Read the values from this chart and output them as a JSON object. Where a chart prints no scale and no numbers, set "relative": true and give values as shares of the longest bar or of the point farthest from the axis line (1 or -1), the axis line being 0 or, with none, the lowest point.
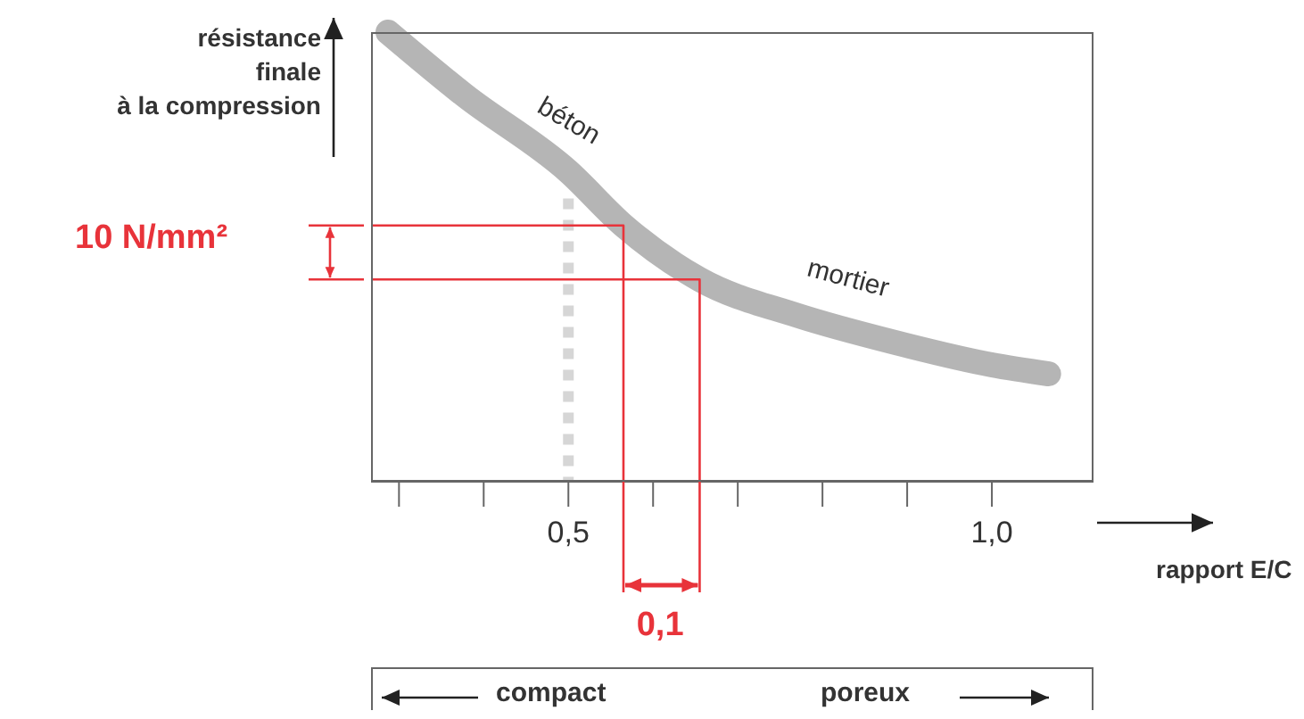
{
  "chart_data": {
    "type": "line",
    "relative": true,
    "xlabel": "rapport E/C",
    "ylabel": "résistance\nfinale\nà la compression",
    "xlim": [
      0.267,
      1.12
    ],
    "xticks": [
      {
        "value": 0.3,
        "label": null
      },
      {
        "value": 0.4,
        "label": null
      },
      {
        "value": 0.5,
        "label": "0,5"
      },
      {
        "value": 0.6,
        "label": null
      },
      {
        "value": 0.7,
        "label": null
      },
      {
        "value": 0.8,
        "label": null
      },
      {
        "value": 0.9,
        "label": null
      },
      {
        "value": 1.0,
        "label": "1,0"
      }
    ],
    "marker": "none",
    "series": [
      {
        "color": "#a8a8a8",
        "x": [
          0.287,
          0.377,
          0.5,
          0.565,
          0.655,
          0.77,
          0.885,
          1.0,
          1.067
        ],
        "values": [
          1,
          0.86,
          0.69,
          0.57,
          0.45,
          0.37,
          0.31,
          0.26,
          0.24
        ]
      },
      {
        "color": "#d6d6d6",
        "line_style": "dotted",
        "x": [
          0.5,
          0.5
        ],
        "values": [
          0.63,
          0
        ]
      },
      {
        "color": "#e8333a",
        "x": [
          0.267,
          0.565,
          0.565
        ],
        "values": [
          0.57,
          0.57,
          0
        ]
      },
      {
        "color": "#e8333a",
        "x": [
          0.267,
          0.655,
          0.655
        ],
        "values": [
          0.45,
          0.45,
          0
        ]
      }
    ],
    "annotations": [
      "béton",
      "mortier",
      "10 N/mm²",
      "0,1",
      "compact",
      "poreux"
    ]
  }
}
